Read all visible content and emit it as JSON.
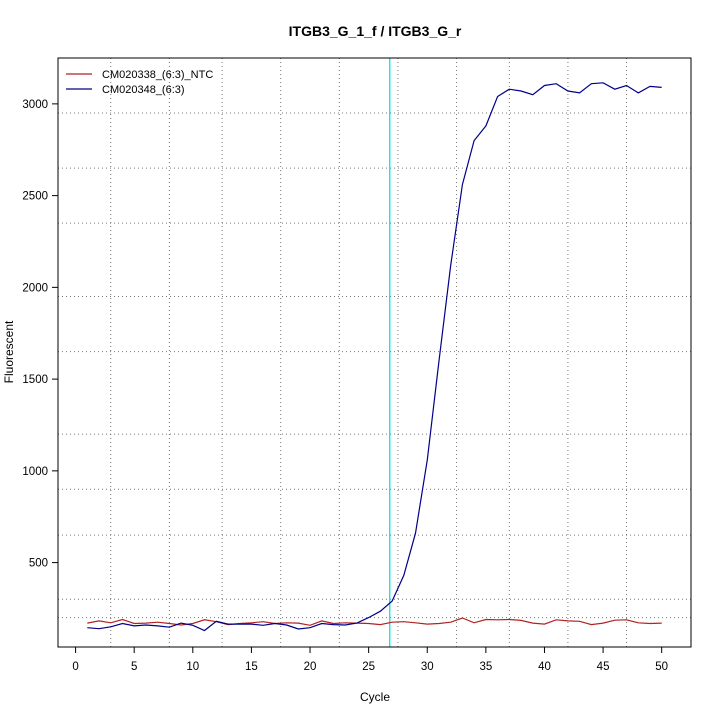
{
  "chart_data": {
    "type": "line",
    "title": "ITGB3_G_1_f / ITGB3_G_r",
    "xlabel": "Cycle",
    "ylabel": "Fluorescent",
    "xlim": [
      -1.5,
      52.5
    ],
    "ylim": [
      40,
      3250
    ],
    "x_ticks": [
      0,
      5,
      10,
      15,
      20,
      25,
      30,
      35,
      40,
      45,
      50
    ],
    "y_ticks": [
      500,
      1000,
      1500,
      2000,
      2500,
      3000
    ],
    "grid": true,
    "grid_vertical_x": [
      3,
      8,
      12.5,
      17.5,
      22.5,
      27.5,
      32.5,
      37,
      42,
      47
    ],
    "grid_horizontal_y": [
      200,
      300,
      650,
      900,
      1200,
      1650,
      1950,
      2350,
      2650,
      2950
    ],
    "threshold_cycle": 26.8,
    "threshold_color": "#00e5e5",
    "legend_position": "top-left",
    "x": [
      1,
      2,
      3,
      4,
      5,
      6,
      7,
      8,
      9,
      10,
      11,
      12,
      13,
      14,
      15,
      16,
      17,
      18,
      19,
      20,
      21,
      22,
      23,
      24,
      25,
      26,
      27,
      28,
      29,
      30,
      31,
      32,
      33,
      34,
      35,
      36,
      37,
      38,
      39,
      40,
      41,
      42,
      43,
      44,
      45,
      46,
      47,
      48,
      49,
      50
    ],
    "series": [
      {
        "name": "CM020338_(6:3)_NTC",
        "color": "#b22222",
        "values": [
          170,
          182,
          172,
          190,
          168,
          170,
          175,
          168,
          160,
          168,
          188,
          178,
          162,
          168,
          172,
          178,
          168,
          172,
          170,
          158,
          182,
          168,
          172,
          170,
          168,
          162,
          175,
          178,
          172,
          165,
          168,
          175,
          198,
          172,
          190,
          188,
          190,
          185,
          170,
          165,
          188,
          182,
          180,
          162,
          170,
          186,
          188,
          172,
          168,
          170
        ]
      },
      {
        "name": "CM020348_(6:3)",
        "color": "#00008b",
        "values": [
          145,
          140,
          150,
          168,
          155,
          160,
          155,
          148,
          170,
          158,
          130,
          180,
          165,
          165,
          165,
          158,
          168,
          160,
          138,
          145,
          168,
          162,
          160,
          170,
          200,
          235,
          290,
          430,
          660,
          1060,
          1600,
          2120,
          2560,
          2800,
          2880,
          3040,
          3080,
          3070,
          3050,
          3100,
          3110,
          3070,
          3060,
          3110,
          3115,
          3080,
          3100,
          3060,
          3095,
          3090
        ]
      }
    ]
  }
}
